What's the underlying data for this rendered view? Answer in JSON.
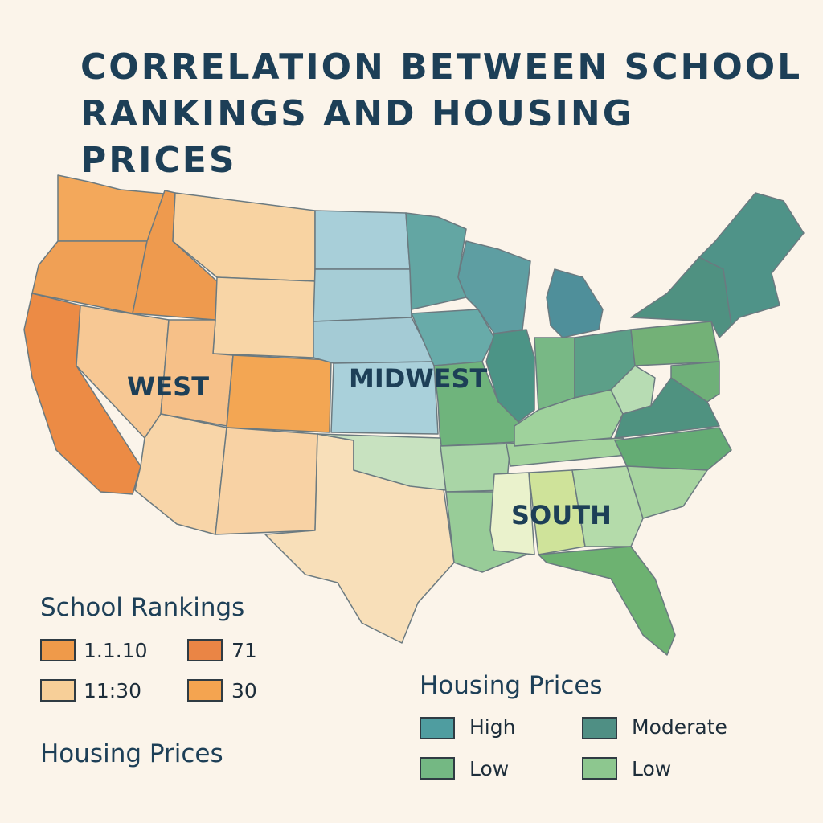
{
  "title": {
    "line1": "CORRELATION BETWEEN SCHOOL",
    "line2": "RANKINGS AND HOUSING PRICES"
  },
  "regions": [
    {
      "name": "WEST"
    },
    {
      "name": "MIDWEST"
    },
    {
      "name": "SOUTH"
    }
  ],
  "legend_school": {
    "heading": "School Rankings",
    "items": [
      {
        "label": "1.1.10",
        "color": "#ef9a4a"
      },
      {
        "label": "71",
        "color": "#ea8545"
      },
      {
        "label": "11:30",
        "color": "#f7cf98"
      },
      {
        "label": "30",
        "color": "#f4a450"
      }
    ]
  },
  "legend_housing_left": {
    "heading": "Housing Prices"
  },
  "legend_housing": {
    "heading": "Housing Prices",
    "items": [
      {
        "label": "High",
        "color": "#4f9da0"
      },
      {
        "label": "Moderate",
        "color": "#4f8f84"
      },
      {
        "label": "Low",
        "color": "#74b883"
      },
      {
        "label": "Low",
        "color": "#8dc78f"
      }
    ]
  },
  "colors": {
    "background": "#fbf4ea",
    "title": "#1d3f57",
    "west_orange": "#f3a457",
    "west_light": "#f8d4a2",
    "midwest_blue": "#a9cfd8",
    "teal": "#4f9a93",
    "green": "#6fb57b",
    "light_green": "#b7dbb0"
  }
}
